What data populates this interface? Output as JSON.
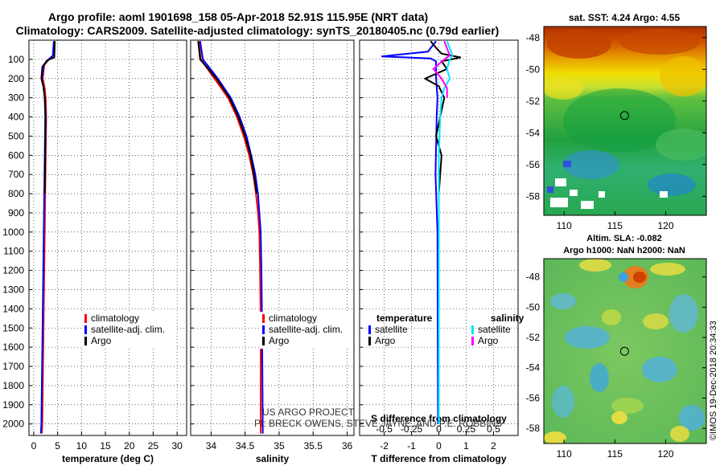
{
  "header": {
    "line1": "Argo profile: aoml 1901698_158 05-Apr-2018 52.91S 115.95E (NRT data)",
    "line2": "Climatology: CARS2009. Satellite-adjusted climatology: synTS_20180405.nc (0.79d earlier)"
  },
  "depth_ticks": [
    100,
    200,
    300,
    400,
    500,
    600,
    700,
    800,
    900,
    1000,
    1100,
    1200,
    1300,
    1400,
    1500,
    1600,
    1700,
    1800,
    1900,
    2000
  ],
  "colors": {
    "climatology": "#ff0000",
    "satellite": "#0000ff",
    "argo": "#000000",
    "argo_s": "#ff00ff",
    "sat_s": "#00e5ff"
  },
  "chart_data": [
    {
      "type": "line",
      "title": "",
      "xlabel": "temperature (deg C)",
      "ylabel": "",
      "xlim": [
        -1,
        32
      ],
      "ylim": [
        2060,
        0
      ],
      "xticks": [
        0,
        5,
        10,
        15,
        20,
        25,
        30
      ],
      "xtick_labels": [
        "0",
        "5",
        "10",
        "15",
        "20",
        "25",
        "30"
      ],
      "legend": [
        "climatology",
        "satellite-adj. clim.",
        "Argo"
      ],
      "series": [
        {
          "name": "climatology",
          "color": "#ff0000",
          "depth": [
            5,
            80,
            100,
            130,
            200,
            250,
            300,
            400,
            600,
            800,
            1000,
            1200,
            1400,
            1600,
            1800,
            2000,
            2050
          ],
          "values": [
            4.3,
            4.1,
            3.2,
            2.2,
            1.9,
            2.3,
            2.5,
            2.6,
            2.5,
            2.4,
            2.3,
            2.2,
            2.1,
            2.0,
            1.9,
            1.8,
            1.7
          ]
        },
        {
          "name": "satellite-adj. clim.",
          "color": "#0000ff",
          "depth": [
            5,
            80,
            100,
            130,
            200,
            250,
            300,
            400,
            600,
            800,
            1000,
            1200,
            1400,
            1600,
            1800,
            2000,
            2050
          ],
          "values": [
            4.2,
            4.0,
            3.1,
            2.1,
            1.7,
            2.1,
            2.3,
            2.4,
            2.3,
            2.2,
            2.1,
            2.0,
            1.9,
            1.8,
            1.7,
            1.6,
            1.5
          ]
        },
        {
          "name": "Argo",
          "color": "#000000",
          "depth": [
            5,
            90,
            105,
            140,
            200,
            240,
            300,
            400,
            600,
            800
          ],
          "values": [
            4.4,
            4.3,
            2.8,
            1.8,
            1.6,
            2.0,
            2.3,
            2.5,
            2.4,
            2.3
          ]
        }
      ]
    },
    {
      "type": "line",
      "title": "",
      "xlabel": "salinity",
      "ylabel": "",
      "xlim": [
        33.7,
        36.1
      ],
      "ylim": [
        2060,
        0
      ],
      "xticks": [
        34,
        34.5,
        35,
        35.5,
        36
      ],
      "xtick_labels": [
        "34",
        "34.5",
        "35",
        "35.5",
        "36"
      ],
      "legend": [
        "climatology",
        "satellite-adj. clim.",
        "Argo"
      ],
      "series": [
        {
          "name": "climatology",
          "color": "#ff0000",
          "depth": [
            5,
            100,
            150,
            200,
            300,
            400,
            500,
            600,
            700,
            800,
            900,
            1000,
            1200,
            1500,
            2050
          ],
          "values": [
            33.82,
            33.85,
            33.95,
            34.05,
            34.25,
            34.38,
            34.48,
            34.56,
            34.62,
            34.66,
            34.69,
            34.71,
            34.72,
            34.73,
            34.73
          ]
        },
        {
          "name": "satellite-adj. clim.",
          "color": "#0000ff",
          "depth": [
            5,
            100,
            150,
            200,
            300,
            400,
            500,
            600,
            700,
            800,
            900,
            1000,
            1200,
            1500,
            2050
          ],
          "values": [
            33.84,
            33.88,
            33.99,
            34.1,
            34.29,
            34.42,
            34.52,
            34.59,
            34.65,
            34.69,
            34.71,
            34.73,
            34.74,
            34.75,
            34.76
          ]
        },
        {
          "name": "Argo",
          "color": "#000000",
          "depth": [
            5,
            100,
            150,
            200,
            300,
            400,
            500,
            600,
            700,
            800
          ],
          "values": [
            33.81,
            33.84,
            33.96,
            34.08,
            34.27,
            34.4,
            34.5,
            34.58,
            34.63,
            34.67
          ]
        }
      ]
    },
    {
      "type": "line",
      "title": "",
      "xlabel": "T difference from climatology",
      "x2label": "S difference from climatology",
      "ylabel": "",
      "xlim": [
        -2.9,
        2.9
      ],
      "ylim": [
        2060,
        0
      ],
      "xticks": [
        -2,
        -1,
        0,
        1,
        2
      ],
      "xtick_labels": [
        "-2",
        "-1",
        "0",
        "1",
        "2"
      ],
      "x2ticks": [
        -2,
        -1,
        0,
        1,
        2
      ],
      "x2tick_labels": [
        "-0.5",
        "-0.25",
        "0",
        "0.25",
        "0.5"
      ],
      "legend_left_title": "temperature",
      "legend_right_title": "salinity",
      "legend_left": [
        "satellite",
        "Argo"
      ],
      "legend_right": [
        "satellite",
        "Argo"
      ],
      "series": [
        {
          "name": "T satellite",
          "color": "#0000ff",
          "depth": [
            5,
            60,
            85,
            95,
            110,
            200,
            300,
            400,
            700,
            1000,
            1500,
            2000
          ],
          "values": [
            -0.1,
            -0.4,
            -2.1,
            -0.3,
            -0.1,
            -0.1,
            -0.05,
            -0.08,
            -0.12,
            -0.05,
            -0.04,
            -0.03
          ]
        },
        {
          "name": "T Argo",
          "color": "#000000",
          "depth": [
            5,
            40,
            70,
            90,
            110,
            150,
            200,
            240,
            300,
            400,
            500,
            600,
            700,
            800
          ],
          "values": [
            -0.3,
            -0.1,
            0.1,
            0.8,
            0.1,
            0.3,
            -0.5,
            0.0,
            0.2,
            0.05,
            -0.1,
            0.1,
            0.05,
            0.0
          ]
        },
        {
          "name": "S satellite",
          "color": "#00e5ff",
          "depth": [
            5,
            80,
            100,
            150,
            200,
            250,
            300,
            400,
            600,
            800,
            1000,
            1500,
            2000
          ],
          "values": [
            0.3,
            0.5,
            0.4,
            0.3,
            0.4,
            0.2,
            0.1,
            0.05,
            0.0,
            0.0,
            0.0,
            0.0,
            0.0
          ]
        },
        {
          "name": "S Argo",
          "color": "#ff00ff",
          "depth": [
            5,
            80,
            100,
            150,
            200,
            250,
            300
          ],
          "values": [
            0.2,
            0.4,
            0.2,
            -0.2,
            0.1,
            0.3,
            0.3
          ]
        }
      ]
    }
  ],
  "sst_panel": {
    "title": "sat. SST: 4.24 Argo: 4.55",
    "yticks": [
      "-48",
      "-50",
      "-52",
      "-54",
      "-56",
      "-58"
    ],
    "ytick_values": [
      -48,
      -50,
      -52,
      -54,
      -56,
      -58
    ],
    "xticks": [
      "110",
      "115",
      "120"
    ],
    "xtick_values": [
      110,
      115,
      120
    ],
    "lon_range": [
      108,
      124
    ],
    "lat_range": [
      -47.3,
      -59.2
    ],
    "float_lon": 115.95,
    "float_lat": -52.91
  },
  "ssh_panel": {
    "title1": "Altim. SLA: -0.082",
    "title2": "Argo h1000: NaN h2000: NaN",
    "yticks": [
      "-48",
      "-50",
      "-52",
      "-54",
      "-56",
      "-58"
    ],
    "ytick_values": [
      -48,
      -50,
      -52,
      -54,
      -56,
      -58
    ],
    "xticks": [
      "110",
      "115",
      "120"
    ],
    "xtick_values": [
      110,
      115,
      120
    ],
    "lon_range": [
      108,
      124
    ],
    "lat_range": [
      -46.8,
      -59.0
    ],
    "float_lon": 115.95,
    "float_lat": -52.91
  },
  "credits": {
    "line1": "US ARGO PROJECT",
    "line2": "PI: BRECK OWENS, STEVE JAYNE, AND P.E. ROBBINS",
    "imos": "©IMOS 19-Dec-2018 20:34:33"
  }
}
